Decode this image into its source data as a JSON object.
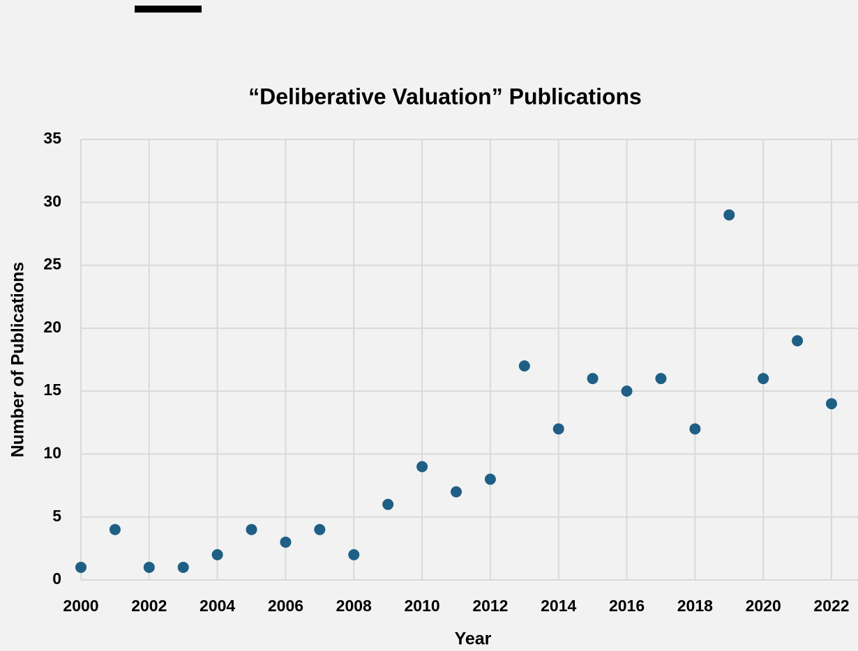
{
  "chart_data": {
    "type": "scatter",
    "title": "“Deliberative Valuation” Publications",
    "x_label": "Year",
    "y_label": "Number of Publications",
    "x": [
      2000,
      2001,
      2002,
      2003,
      2004,
      2005,
      2006,
      2007,
      2008,
      2009,
      2010,
      2011,
      2012,
      2013,
      2014,
      2015,
      2016,
      2017,
      2018,
      2019,
      2020,
      2021,
      2022
    ],
    "series": [
      {
        "name": "Publications",
        "color": "#1f5f85",
        "values": [
          1,
          4,
          1,
          1,
          2,
          4,
          3,
          4,
          2,
          6,
          9,
          7,
          8,
          17,
          12,
          16,
          15,
          16,
          12,
          29,
          16,
          19,
          14
        ]
      }
    ],
    "xlim": [
      2000,
      2022
    ],
    "xticks": [
      2000,
      2002,
      2004,
      2006,
      2008,
      2010,
      2012,
      2014,
      2016,
      2018,
      2020,
      2022
    ],
    "ylim": [
      0,
      35
    ],
    "yticks": [
      0,
      5,
      10,
      15,
      20,
      25,
      30,
      35
    ],
    "grid": true
  }
}
